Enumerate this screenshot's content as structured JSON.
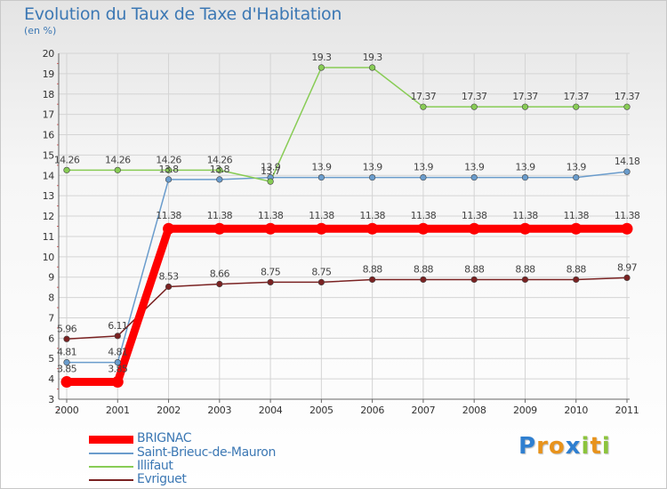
{
  "title": "Evolution du Taux de Taxe d'Habitation",
  "subtitle": "(en %)",
  "logo_text": "Proxiti",
  "logo_letters": [
    {
      "ch": "P",
      "color": "#2f7fd0"
    },
    {
      "ch": "r",
      "color": "#e8931c"
    },
    {
      "ch": "o",
      "color": "#e8931c"
    },
    {
      "ch": "x",
      "color": "#2f7fd0"
    },
    {
      "ch": "i",
      "color": "#8cc43c"
    },
    {
      "ch": "t",
      "color": "#e8931c"
    },
    {
      "ch": "i",
      "color": "#8cc43c"
    }
  ],
  "chart_data": {
    "type": "line",
    "title": "Evolution du Taux de Taxe d'Habitation",
    "ylabel": "(en %)",
    "xlabel": "",
    "x": [
      "2000",
      "2001",
      "2002",
      "2003",
      "2004",
      "2005",
      "2006",
      "2007",
      "2008",
      "2009",
      "2010",
      "2011"
    ],
    "ylim": [
      3,
      20
    ],
    "yticks": [
      3,
      4,
      5,
      6,
      7,
      8,
      9,
      10,
      11,
      12,
      13,
      14,
      15,
      16,
      17,
      18,
      19,
      20
    ],
    "grid": true,
    "legend_position": "bottom-left",
    "series": [
      {
        "name": "BRIGNAC",
        "color": "#ff0000",
        "emphasis": true,
        "values": [
          3.85,
          3.85,
          11.38,
          11.38,
          11.38,
          11.38,
          11.38,
          11.38,
          11.38,
          11.38,
          11.38,
          11.38
        ],
        "labels": [
          "3.85",
          "3.85",
          "11.38",
          "11.38",
          "11.38",
          "11.38",
          "11.38",
          "11.38",
          "11.38",
          "11.38",
          "11.38",
          "11.38"
        ]
      },
      {
        "name": "Saint-Brieuc-de-Mauron",
        "color": "#6a9ccc",
        "emphasis": false,
        "values": [
          4.81,
          4.81,
          13.8,
          13.8,
          13.9,
          13.9,
          13.9,
          13.9,
          13.9,
          13.9,
          13.9,
          14.18
        ],
        "labels": [
          "4.81",
          "4.81",
          "13.8",
          "13.8",
          "13.9",
          "13.9",
          "13.9",
          "13.9",
          "13.9",
          "13.9",
          "13.9",
          "14.18"
        ]
      },
      {
        "name": "Illifaut",
        "color": "#88cc55",
        "emphasis": false,
        "values": [
          14.26,
          14.26,
          14.26,
          14.26,
          13.7,
          19.3,
          19.3,
          17.37,
          17.37,
          17.37,
          17.37,
          17.37
        ],
        "labels": [
          "14.26",
          "14.26",
          "14.26",
          "14.26",
          "13.7",
          "19.3",
          "19.3",
          "17.37",
          "17.37",
          "17.37",
          "17.37",
          "17.37"
        ]
      },
      {
        "name": "Evriguet",
        "color": "#7a2222",
        "emphasis": false,
        "values": [
          5.96,
          6.11,
          8.53,
          8.66,
          8.75,
          8.75,
          8.88,
          8.88,
          8.88,
          8.88,
          8.88,
          8.97
        ],
        "labels": [
          "5.96",
          "6.11",
          "8.53",
          "8.66",
          "8.75",
          "8.75",
          "8.88",
          "8.88",
          "8.88",
          "8.88",
          "8.88",
          "8.97"
        ]
      }
    ]
  }
}
